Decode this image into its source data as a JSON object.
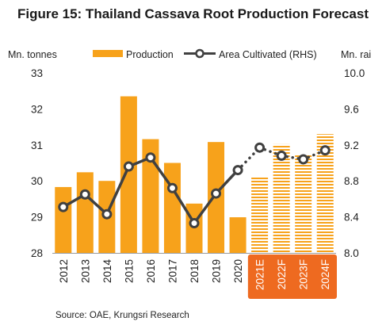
{
  "chart_data": {
    "type": "bar",
    "title": "Figure 15: Thailand Cassava Root Production Forecast",
    "y_left_label": "Mn. tonnes",
    "y_right_label": "Mn. rai",
    "categories": [
      "2012",
      "2013",
      "2014",
      "2015",
      "2016",
      "2017",
      "2018",
      "2019",
      "2020",
      "2021E",
      "2022F",
      "2023F",
      "2024F"
    ],
    "forecast_categories": [
      "2021E",
      "2022F",
      "2023F",
      "2024F"
    ],
    "ylim_left": [
      28,
      33
    ],
    "yticks_left": [
      28,
      29,
      30,
      31,
      32,
      33
    ],
    "ylim_right": [
      8.0,
      10.0
    ],
    "yticks_right": [
      "8.0",
      "8.4",
      "8.8",
      "9.2",
      "9.6",
      "10.0"
    ],
    "series": [
      {
        "name": "Production",
        "type": "bar",
        "axis": "left",
        "values": [
          29.83,
          30.24,
          30.0,
          32.35,
          31.16,
          30.5,
          29.37,
          31.08,
          28.99,
          30.1,
          31.02,
          30.73,
          31.3
        ]
      },
      {
        "name": "Area Cultivated (RHS)",
        "type": "line",
        "axis": "right",
        "values": [
          8.51,
          8.65,
          8.43,
          8.96,
          9.06,
          8.72,
          8.33,
          8.66,
          8.92,
          9.17,
          9.08,
          9.04,
          9.14
        ]
      }
    ],
    "colors": {
      "bar": "#f7a21b",
      "line": "#404040",
      "forecast_label_bg": "#ee6a20",
      "marker_fill": "#ffffff"
    },
    "source": "Source: OAE, Krungsri Research"
  }
}
